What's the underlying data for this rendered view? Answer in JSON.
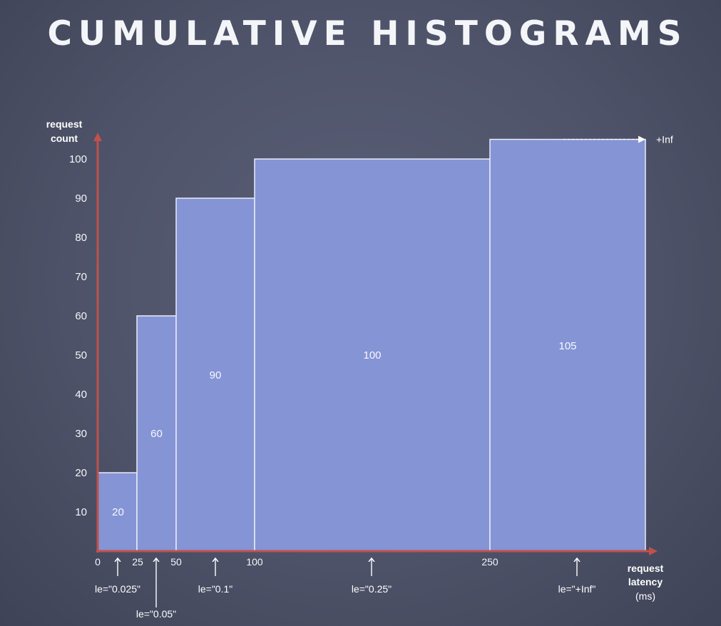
{
  "title": "CUMULATIVE HISTOGRAMS",
  "chart_data": {
    "type": "bar",
    "subtype": "cumulative-histogram",
    "bar_color": "#8594d4",
    "axis_color": "#c0514c",
    "ylabel": [
      "request",
      "count"
    ],
    "xlabel": [
      "request",
      "latency",
      "(ms)"
    ],
    "ylim": [
      0,
      100
    ],
    "yticks": [
      10,
      20,
      30,
      40,
      50,
      60,
      70,
      80,
      90,
      100
    ],
    "xticks": [
      "0",
      "25",
      "50",
      "100",
      "250"
    ],
    "overflow_label": "+Inf",
    "buckets": [
      {
        "from": 0,
        "to": 25,
        "value": 20,
        "label": "20"
      },
      {
        "from": 25,
        "to": 50,
        "value": 60,
        "label": "60"
      },
      {
        "from": 50,
        "to": 100,
        "value": 90,
        "label": "90"
      },
      {
        "from": 100,
        "to": 250,
        "value": 100,
        "label": "100"
      },
      {
        "from": 250,
        "to": "+Inf",
        "value": 105,
        "label": "105"
      }
    ],
    "le_labels": [
      {
        "text": "le=\"0.025\"",
        "bucket": 0
      },
      {
        "text": "le=\"0.05\"",
        "bucket": 1
      },
      {
        "text": "le=\"0.1\"",
        "bucket": 2
      },
      {
        "text": "le=\"0.25\"",
        "bucket": 3
      },
      {
        "text": "le=\"+Inf\"",
        "bucket": 4
      }
    ]
  }
}
